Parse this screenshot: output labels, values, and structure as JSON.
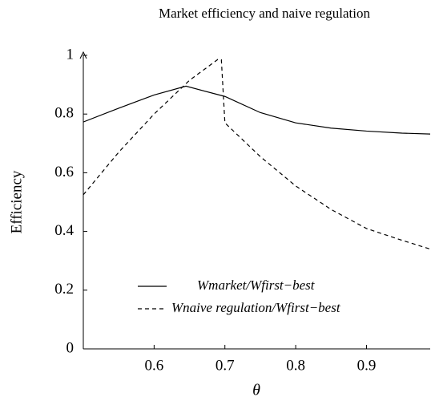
{
  "chart_data": {
    "type": "line",
    "title": "Market efficiency and naive regulation",
    "xlabel": "θ",
    "ylabel": "Efficiency",
    "xlim": [
      0.5,
      0.99
    ],
    "ylim": [
      0,
      1
    ],
    "xticks": [
      0.6,
      0.7,
      0.8,
      0.9
    ],
    "yticks": [
      0,
      0.2,
      0.4,
      0.6,
      0.8,
      1
    ],
    "legend": "lower center",
    "series": [
      {
        "name": "Wmarket/Wfirst−best",
        "color": "#000000",
        "dash": "solid",
        "x": [
          0.5,
          0.55,
          0.6,
          0.645,
          0.7,
          0.75,
          0.8,
          0.85,
          0.9,
          0.95,
          0.99
        ],
        "values": [
          0.773,
          0.82,
          0.865,
          0.895,
          0.86,
          0.805,
          0.77,
          0.752,
          0.742,
          0.735,
          0.732
        ]
      },
      {
        "name": "Wnaive regulation/Wfirst−best",
        "color": "#000000",
        "dash": "dashed",
        "x": [
          0.5,
          0.55,
          0.6,
          0.65,
          0.69,
          0.695,
          0.7,
          0.75,
          0.8,
          0.85,
          0.9,
          0.95,
          0.99
        ],
        "values": [
          0.525,
          0.67,
          0.8,
          0.915,
          0.986,
          0.985,
          0.77,
          0.655,
          0.555,
          0.475,
          0.41,
          0.37,
          0.34
        ]
      }
    ]
  }
}
